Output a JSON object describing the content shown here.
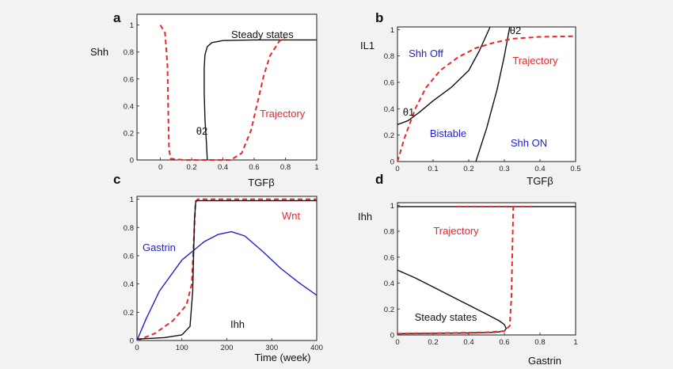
{
  "colors": {
    "black": "#111111",
    "red": "#e8282d",
    "blue": "#1f1fcf",
    "ann_blue": "#1f1fcf",
    "ann_red": "#e8282d"
  },
  "chart_data": [
    {
      "panel": "a",
      "type": "line",
      "ylabel": "Shh",
      "xlabel": "TGFβ",
      "xlim": [
        -0.15,
        1.0
      ],
      "ylim": [
        0,
        1.08
      ],
      "xticks": [
        "0",
        "0.2",
        "0.4",
        "0.6",
        "0.8",
        "1"
      ],
      "xtick_values": [
        0,
        0.2,
        0.4,
        0.6,
        0.8,
        1
      ],
      "yticks": [
        "0",
        "0.2",
        "0.4",
        "0.6",
        "0.8",
        "1"
      ],
      "ytick_values": [
        0,
        0.2,
        0.4,
        0.6,
        0.8,
        1
      ],
      "annotations": [
        {
          "text": "Steady states",
          "color": "black"
        },
        {
          "text": "θ2",
          "color": "black"
        },
        {
          "text": "Trajectory",
          "color": "red"
        }
      ],
      "series": [
        {
          "style": "solid",
          "color": "black",
          "points": [
            [
              0.3,
              0.0
            ],
            [
              0.295,
              0.12
            ],
            [
              0.285,
              0.3
            ],
            [
              0.28,
              0.5
            ],
            [
              0.28,
              0.68
            ],
            [
              0.285,
              0.78
            ],
            [
              0.3,
              0.84
            ],
            [
              0.33,
              0.87
            ],
            [
              0.4,
              0.885
            ],
            [
              0.6,
              0.89
            ],
            [
              1.0,
              0.89
            ]
          ]
        },
        {
          "style": "dashed",
          "color": "red",
          "points": [
            [
              0.0,
              1.0
            ],
            [
              0.03,
              0.94
            ],
            [
              0.045,
              0.7
            ],
            [
              0.05,
              0.35
            ],
            [
              0.055,
              0.08
            ],
            [
              0.065,
              0.01
            ],
            [
              0.15,
              0.0
            ],
            [
              0.45,
              0.0
            ],
            [
              0.52,
              0.05
            ],
            [
              0.58,
              0.22
            ],
            [
              0.62,
              0.42
            ],
            [
              0.66,
              0.62
            ],
            [
              0.7,
              0.77
            ],
            [
              0.76,
              0.88
            ],
            [
              0.8,
              0.91
            ]
          ]
        }
      ]
    },
    {
      "panel": "b",
      "type": "line",
      "ylabel": "IL1",
      "xlabel": "TGFβ",
      "xlim": [
        0,
        0.5
      ],
      "ylim": [
        0,
        1.02
      ],
      "xticks": [
        "0",
        "0.1",
        "0.2",
        "0.3",
        "0.4",
        "0.5"
      ],
      "xtick_values": [
        0,
        0.1,
        0.2,
        0.3,
        0.4,
        0.5
      ],
      "yticks": [
        "0",
        "0.2",
        "0.4",
        "0.6",
        "0.8",
        "1"
      ],
      "ytick_values": [
        0,
        0.2,
        0.4,
        0.6,
        0.8,
        1
      ],
      "annotations": [
        {
          "text": "Shh Off",
          "color": "blue"
        },
        {
          "text": "θ1",
          "color": "black"
        },
        {
          "text": "Bistable",
          "color": "blue"
        },
        {
          "text": "Shh ON",
          "color": "blue"
        },
        {
          "text": "θ2",
          "color": "black"
        },
        {
          "text": "Trajectory",
          "color": "red"
        }
      ],
      "series": [
        {
          "style": "solid",
          "color": "black",
          "points": [
            [
              0.0,
              0.28
            ],
            [
              0.03,
              0.31
            ],
            [
              0.06,
              0.37
            ],
            [
              0.1,
              0.46
            ],
            [
              0.15,
              0.56
            ],
            [
              0.2,
              0.69
            ],
            [
              0.23,
              0.84
            ],
            [
              0.26,
              1.02
            ]
          ]
        },
        {
          "style": "solid",
          "color": "black",
          "points": [
            [
              0.22,
              0.0
            ],
            [
              0.25,
              0.25
            ],
            [
              0.28,
              0.55
            ],
            [
              0.3,
              0.8
            ],
            [
              0.315,
              1.02
            ]
          ]
        },
        {
          "style": "dashed",
          "color": "red",
          "points": [
            [
              0.0,
              0.0
            ],
            [
              0.02,
              0.18
            ],
            [
              0.05,
              0.4
            ],
            [
              0.08,
              0.56
            ],
            [
              0.12,
              0.69
            ],
            [
              0.17,
              0.79
            ],
            [
              0.22,
              0.86
            ],
            [
              0.27,
              0.9
            ],
            [
              0.32,
              0.93
            ],
            [
              0.4,
              0.945
            ],
            [
              0.5,
              0.95
            ]
          ]
        }
      ]
    },
    {
      "panel": "c",
      "type": "line",
      "ylabel": "",
      "xlabel": "Time (week)",
      "xlim": [
        0,
        400
      ],
      "ylim": [
        0,
        1.02
      ],
      "xticks": [
        "0",
        "100",
        "200",
        "300",
        "400"
      ],
      "xtick_values": [
        0,
        100,
        200,
        300,
        400
      ],
      "yticks": [
        "0",
        "0.2",
        "0.4",
        "0.6",
        "0.8",
        "1"
      ],
      "ytick_values": [
        0,
        0.2,
        0.4,
        0.6,
        0.8,
        1
      ],
      "annotations": [
        {
          "text": "Gastrin",
          "color": "blue"
        },
        {
          "text": "Wnt",
          "color": "red"
        },
        {
          "text": "Ihh",
          "color": "black"
        }
      ],
      "series": [
        {
          "name": "Gastrin",
          "style": "solid",
          "color": "blue",
          "points": [
            [
              0,
              0.0
            ],
            [
              20,
              0.15
            ],
            [
              50,
              0.35
            ],
            [
              100,
              0.57
            ],
            [
              150,
              0.7
            ],
            [
              180,
              0.75
            ],
            [
              210,
              0.77
            ],
            [
              240,
              0.74
            ],
            [
              280,
              0.63
            ],
            [
              320,
              0.51
            ],
            [
              360,
              0.41
            ],
            [
              400,
              0.32
            ]
          ]
        },
        {
          "name": "Wnt",
          "style": "dashed",
          "color": "red",
          "points": [
            [
              0,
              0.0
            ],
            [
              40,
              0.05
            ],
            [
              80,
              0.14
            ],
            [
              110,
              0.25
            ],
            [
              122,
              0.4
            ],
            [
              127,
              0.75
            ],
            [
              130,
              0.97
            ],
            [
              135,
              1.0
            ],
            [
              400,
              1.0
            ]
          ]
        },
        {
          "name": "Ihh",
          "style": "solid",
          "color": "black",
          "points": [
            [
              0,
              0.01
            ],
            [
              60,
              0.02
            ],
            [
              100,
              0.04
            ],
            [
              118,
              0.1
            ],
            [
              124,
              0.35
            ],
            [
              128,
              0.85
            ],
            [
              131,
              0.99
            ],
            [
              140,
              0.99
            ],
            [
              400,
              0.99
            ]
          ]
        }
      ]
    },
    {
      "panel": "d",
      "type": "line",
      "ylabel": "Ihh",
      "xlabel": "Gastrin",
      "xlim": [
        0,
        1.0
      ],
      "ylim": [
        0,
        1.02
      ],
      "xticks": [
        "0",
        "0.2",
        "0.4",
        "0.6",
        "0.8",
        "1"
      ],
      "xtick_values": [
        0,
        0.2,
        0.4,
        0.6,
        0.8,
        1
      ],
      "yticks": [
        "0",
        "0.2",
        "0.4",
        "0.6",
        "0.8",
        "1"
      ],
      "ytick_values": [
        0,
        0.2,
        0.4,
        0.6,
        0.8,
        1
      ],
      "annotations": [
        {
          "text": "Trajectory",
          "color": "red"
        },
        {
          "text": "Steady states",
          "color": "black"
        }
      ],
      "series": [
        {
          "style": "solid",
          "color": "black",
          "points": [
            [
              0.0,
              0.99
            ],
            [
              1.0,
              0.99
            ]
          ]
        },
        {
          "style": "solid",
          "color": "black",
          "points": [
            [
              0.0,
              0.5
            ],
            [
              0.1,
              0.44
            ],
            [
              0.2,
              0.37
            ],
            [
              0.3,
              0.3
            ],
            [
              0.4,
              0.23
            ],
            [
              0.5,
              0.16
            ],
            [
              0.57,
              0.11
            ],
            [
              0.6,
              0.08
            ],
            [
              0.61,
              0.05
            ],
            [
              0.6,
              0.03
            ],
            [
              0.55,
              0.02
            ],
            [
              0.4,
              0.015
            ],
            [
              0.0,
              0.01
            ]
          ]
        },
        {
          "style": "dashed",
          "color": "red",
          "points": [
            [
              0.0,
              0.01
            ],
            [
              0.3,
              0.015
            ],
            [
              0.5,
              0.02
            ],
            [
              0.6,
              0.03
            ],
            [
              0.63,
              0.07
            ],
            [
              0.64,
              0.3
            ],
            [
              0.645,
              0.65
            ],
            [
              0.65,
              0.99
            ]
          ]
        },
        {
          "style": "dashed",
          "color": "red",
          "points": [
            [
              0.33,
              0.99
            ],
            [
              0.76,
              0.99
            ]
          ]
        }
      ]
    }
  ]
}
